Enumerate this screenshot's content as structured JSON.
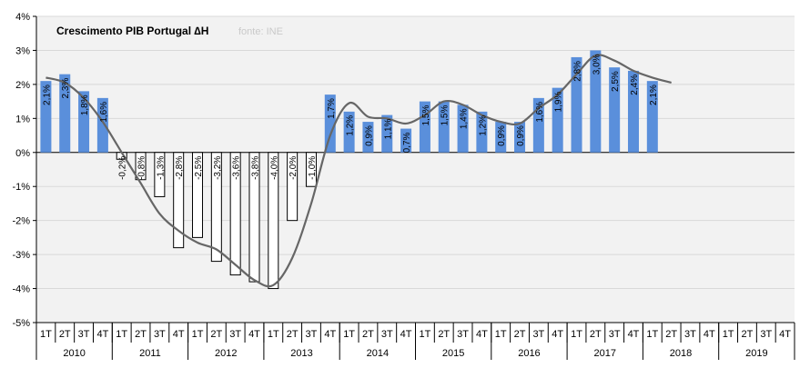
{
  "chart_data": {
    "type": "bar",
    "title": "Crescimento PIB Portugal ∆H",
    "source": "fonte: INE",
    "ylim": [
      -5,
      4
    ],
    "y_ticks": [
      4,
      3,
      2,
      1,
      0,
      -1,
      -2,
      -3,
      -4,
      -5
    ],
    "y_tick_labels": [
      "4%",
      "3%",
      "2%",
      "1%",
      "0%",
      "-1%",
      "-2%",
      "-3%",
      "-4%",
      "-5%"
    ],
    "grid": true,
    "legend": "none",
    "categories": [
      "1T",
      "2T",
      "3T",
      "4T",
      "1T",
      "2T",
      "3T",
      "4T",
      "1T",
      "2T",
      "3T",
      "4T",
      "1T",
      "2T",
      "3T",
      "4T",
      "1T",
      "2T",
      "3T",
      "4T",
      "1T",
      "2T",
      "3T",
      "4T",
      "1T",
      "2T",
      "3T",
      "4T",
      "1T",
      "2T",
      "3T",
      "4T",
      "1T",
      "2T",
      "3T",
      "4T",
      "1T",
      "2T",
      "3T",
      "4T"
    ],
    "years": [
      "2010",
      "2011",
      "2012",
      "2013",
      "2014",
      "2015",
      "2016",
      "2017",
      "2018",
      "2019"
    ],
    "series": [
      {
        "values": [
          2.1,
          2.3,
          1.8,
          1.6,
          -0.2,
          -0.8,
          -1.3,
          -2.8,
          -2.5,
          -3.2,
          -3.6,
          -3.8,
          -4.0,
          -2.0,
          -1.0,
          1.7,
          1.2,
          0.9,
          1.1,
          0.7,
          1.5,
          1.5,
          1.4,
          1.2,
          0.9,
          0.9,
          1.6,
          1.9,
          2.8,
          3.0,
          2.5,
          2.4,
          2.1,
          null,
          null,
          null,
          null,
          null,
          null,
          null
        ],
        "labels": [
          "2,1%",
          "2,3%",
          "1,8%",
          "1,6%",
          "-0,2%",
          "-0,8%",
          "-1,3%",
          "-2,8%",
          "-2,5%",
          "-3,2%",
          "-3,6%",
          "-3,8%",
          "-4,0%",
          "-2,0%",
          "-1,0%",
          "1,7%",
          "1,2%",
          "0,9%",
          "1,1%",
          "0,7%",
          "1,5%",
          "1,5%",
          "1,4%",
          "1,2%",
          "0,9%",
          "0,9%",
          "1,6%",
          "1,9%",
          "2,8%",
          "3,0%",
          "2,5%",
          "2,4%",
          "2,1%",
          "",
          "",
          "",
          "",
          "",
          "",
          ""
        ]
      },
      {
        "type": "line",
        "values": [
          2.2,
          2.05,
          1.6,
          0.9,
          0.0,
          -0.9,
          -1.8,
          -2.3,
          -2.65,
          -2.85,
          -3.3,
          -3.75,
          -3.9,
          -3.1,
          -1.5,
          0.5,
          1.45,
          1.05,
          1.0,
          0.85,
          1.1,
          1.5,
          1.4,
          1.1,
          0.9,
          0.85,
          1.3,
          1.7,
          2.3,
          2.85,
          2.7,
          2.4,
          2.2,
          2.05,
          null,
          null,
          null,
          null,
          null,
          null
        ]
      }
    ],
    "colors": {
      "positive_bar": "#5a8fdb",
      "negative_bar_fill": "#ffffff",
      "negative_bar_border": "#000000",
      "trend_line": "#666666",
      "grid": "#d9d9d9",
      "plot_bg": "#f2f2f2"
    }
  }
}
